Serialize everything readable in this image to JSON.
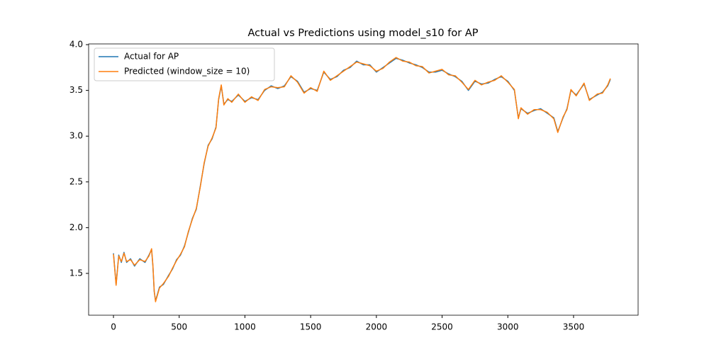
{
  "chart_data": {
    "type": "line",
    "title": "Actual vs Predictions using model_s10 for AP",
    "x": [
      0,
      20,
      40,
      60,
      80,
      100,
      130,
      160,
      200,
      240,
      270,
      290,
      300,
      310,
      320,
      350,
      380,
      420,
      450,
      480,
      510,
      540,
      570,
      600,
      630,
      660,
      690,
      720,
      750,
      780,
      800,
      820,
      840,
      870,
      900,
      950,
      1000,
      1050,
      1100,
      1150,
      1200,
      1250,
      1300,
      1350,
      1400,
      1450,
      1500,
      1550,
      1600,
      1650,
      1700,
      1750,
      1800,
      1850,
      1900,
      1950,
      2000,
      2050,
      2100,
      2150,
      2200,
      2250,
      2300,
      2350,
      2400,
      2450,
      2500,
      2550,
      2600,
      2650,
      2700,
      2750,
      2800,
      2850,
      2900,
      2950,
      3000,
      3050,
      3080,
      3100,
      3150,
      3200,
      3250,
      3300,
      3350,
      3380,
      3420,
      3450,
      3480,
      3520,
      3580,
      3620,
      3680,
      3720,
      3760,
      3780
    ],
    "series": [
      {
        "name": "Actual for AP",
        "color": "#1f77b4",
        "values": [
          1.72,
          1.38,
          1.7,
          1.62,
          1.73,
          1.62,
          1.66,
          1.58,
          1.66,
          1.62,
          1.7,
          1.76,
          1.58,
          1.3,
          1.2,
          1.35,
          1.38,
          1.48,
          1.55,
          1.65,
          1.7,
          1.8,
          1.95,
          2.1,
          2.2,
          2.45,
          2.7,
          2.9,
          2.97,
          3.1,
          3.4,
          3.55,
          3.35,
          3.4,
          3.38,
          3.45,
          3.38,
          3.42,
          3.4,
          3.5,
          3.55,
          3.52,
          3.55,
          3.65,
          3.6,
          3.48,
          3.52,
          3.5,
          3.7,
          3.62,
          3.65,
          3.72,
          3.75,
          3.82,
          3.78,
          3.78,
          3.7,
          3.75,
          3.8,
          3.85,
          3.83,
          3.8,
          3.78,
          3.75,
          3.7,
          3.7,
          3.72,
          3.68,
          3.65,
          3.6,
          3.5,
          3.6,
          3.57,
          3.58,
          3.62,
          3.65,
          3.6,
          3.5,
          3.2,
          3.3,
          3.25,
          3.28,
          3.3,
          3.25,
          3.2,
          3.05,
          3.2,
          3.3,
          3.5,
          3.45,
          3.57,
          3.4,
          3.45,
          3.48,
          3.55,
          3.62
        ]
      },
      {
        "name": "Predicted (window_size = 10)",
        "color": "#ff7f0e",
        "values": [
          1.71,
          1.37,
          1.69,
          1.63,
          1.72,
          1.63,
          1.65,
          1.59,
          1.65,
          1.63,
          1.69,
          1.77,
          1.59,
          1.31,
          1.19,
          1.34,
          1.39,
          1.47,
          1.56,
          1.64,
          1.71,
          1.79,
          1.96,
          2.09,
          2.21,
          2.44,
          2.71,
          2.89,
          2.98,
          3.09,
          3.41,
          3.56,
          3.34,
          3.41,
          3.37,
          3.46,
          3.37,
          3.43,
          3.39,
          3.51,
          3.54,
          3.53,
          3.54,
          3.66,
          3.59,
          3.47,
          3.53,
          3.49,
          3.71,
          3.61,
          3.66,
          3.71,
          3.76,
          3.81,
          3.79,
          3.77,
          3.71,
          3.74,
          3.81,
          3.86,
          3.82,
          3.81,
          3.77,
          3.76,
          3.69,
          3.71,
          3.73,
          3.67,
          3.66,
          3.59,
          3.51,
          3.61,
          3.56,
          3.59,
          3.61,
          3.66,
          3.59,
          3.51,
          3.19,
          3.31,
          3.24,
          3.29,
          3.29,
          3.26,
          3.19,
          3.04,
          3.21,
          3.29,
          3.51,
          3.44,
          3.58,
          3.39,
          3.46,
          3.47,
          3.56,
          3.63
        ]
      }
    ],
    "xlim": [
      -189,
      3991
    ],
    "xticks": [
      0,
      500,
      1000,
      1500,
      2000,
      2500,
      3000,
      3500
    ],
    "ylim": [
      1.043,
      4.008
    ],
    "yticks": [
      1.5,
      {
        "value": 2.0,
        "label": "2.0"
      },
      2.5,
      {
        "value": 3.0,
        "label": "3.0"
      },
      3.5,
      {
        "value": 4.0,
        "label": "4.0"
      }
    ],
    "legend": "upper left"
  }
}
